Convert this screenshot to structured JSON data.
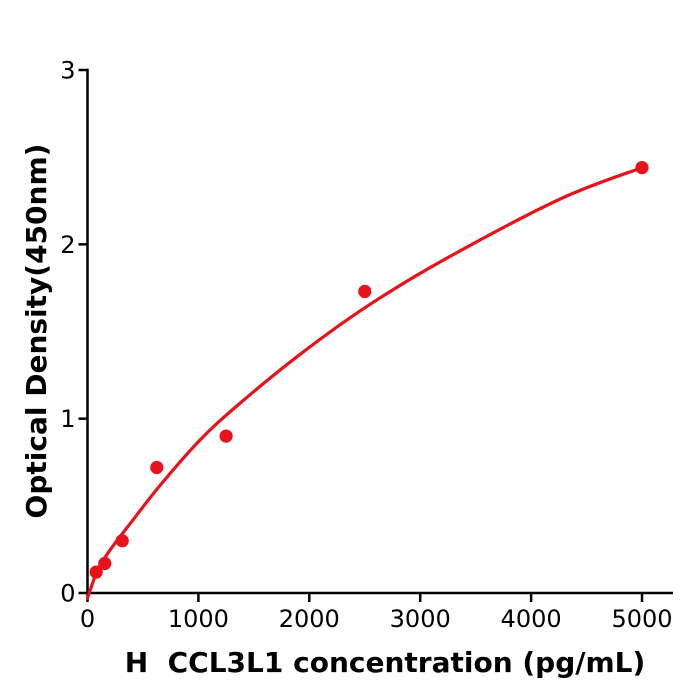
{
  "figure": {
    "background_color": "#ffffff",
    "axis_color": "#000000",
    "accent_red": "#e8121a"
  },
  "chart_data": {
    "type": "scatter",
    "title": "",
    "xlabel": "H  CCL3L1 concentration (pg/mL)",
    "ylabel": "Optical Density(450nm)",
    "xlim": [
      0,
      5280
    ],
    "ylim": [
      0,
      3
    ],
    "grid": false,
    "legend_position": "none",
    "xticks": [
      0,
      1000,
      2000,
      3000,
      4000,
      5000
    ],
    "xtick_labels": [
      "0",
      "1000",
      "2000",
      "3000",
      "4000",
      "5000"
    ],
    "yticks": [
      0,
      1,
      2,
      3
    ],
    "ytick_labels": [
      "0",
      "1",
      "2",
      "3"
    ],
    "series": [
      {
        "name": "standard-points",
        "type": "scatter",
        "marker": "circle",
        "color": "#e8121a",
        "x": [
          78.125,
          156.25,
          312.5,
          625,
          1250,
          2500,
          5000
        ],
        "y": [
          0.12,
          0.17,
          0.3,
          0.72,
          0.9,
          1.73,
          2.44
        ]
      },
      {
        "name": "fit-curve",
        "type": "line",
        "color": "#e8121a",
        "x": [
          0,
          90,
          207,
          387,
          658,
          1018,
          1378,
          1919,
          2487,
          3181,
          4262,
          5000
        ],
        "y": [
          -0.03,
          0.13,
          0.25,
          0.4,
          0.62,
          0.88,
          1.09,
          1.37,
          1.63,
          1.9,
          2.26,
          2.44
        ]
      }
    ]
  }
}
